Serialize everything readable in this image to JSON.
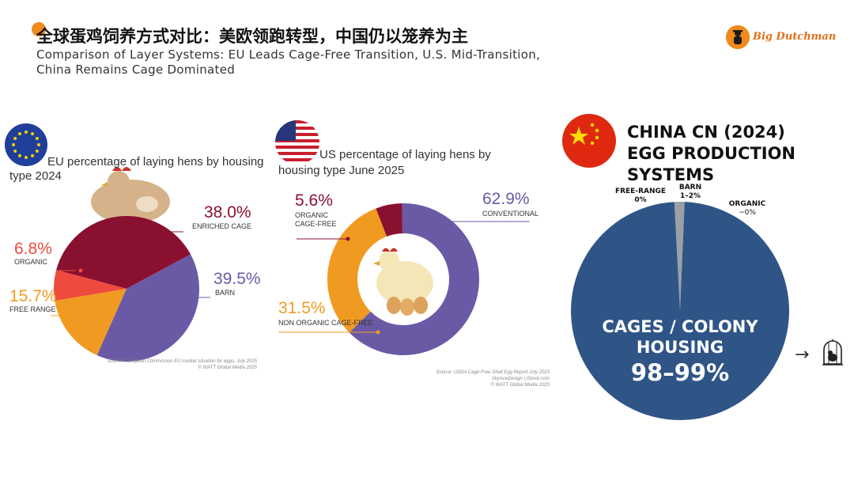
{
  "header": {
    "title_cn": "全球蛋鸡饲养方式对比：美欧领跑转型，中国仍以笼养为主",
    "subtitle_line1": "Comparison of Layer Systems: EU Leads Cage-Free Transition, U.S. Mid-Transition,",
    "subtitle_line2": "China Remains Cage Dominated"
  },
  "logo": {
    "text": "Big Dutchman",
    "icon": "farmer-logo-icon"
  },
  "colors": {
    "accent_orange": "#f08a1c",
    "eu_enriched_cage": "#8a1030",
    "eu_organic": "#ee4b3e",
    "eu_free_range": "#f19a22",
    "eu_barn": "#6a5aa6",
    "us_conventional": "#6a5aa6",
    "us_non_organic_cage_free": "#f19a22",
    "us_organic_cage_free": "#8a1030",
    "cn_cages": "#2f5587",
    "cn_other": "#9aa0a6"
  },
  "chart_data": [
    {
      "type": "pie",
      "title_line1": "EU percentage of laying hens by housing",
      "title_line2": "type 2024",
      "slices": [
        {
          "pct_label": "38.0%",
          "name": "ENRICHED CAGE",
          "value": 38.0,
          "color": "#8a1030"
        },
        {
          "pct_label": "39.5%",
          "name": "BARN",
          "value": 39.5,
          "color": "#6a5aa6"
        },
        {
          "pct_label": "15.7%",
          "name": "FREE RANGE",
          "value": 15.7,
          "color": "#f19a22"
        },
        {
          "pct_label": "6.8%",
          "name": "ORGANIC",
          "value": 6.8,
          "color": "#ee4b3e"
        }
      ],
      "source_line1": "Source: European Commission EU market situation for eggs, July 2025",
      "source_line2": "© WATT Global Media 2025"
    },
    {
      "type": "pie",
      "title_line1": "US percentage of laying hens by",
      "title_line2": "housing type June 2025",
      "slices": [
        {
          "pct_label": "62.9%",
          "name": "CONVENTIONAL",
          "value": 62.9,
          "color": "#6a5aa6"
        },
        {
          "pct_label": "31.5%",
          "name": "NON ORGANIC CAGE-FREE",
          "value": 31.5,
          "color": "#f19a22"
        },
        {
          "pct_label": "5.6%",
          "name_line1": "ORGANIC",
          "name_line2": "CAGE-FREE",
          "value": 5.6,
          "color": "#8a1030"
        }
      ],
      "source_line1": "Source: USDA Cage-Free Shell Egg Report July 2023",
      "source_line2": "SkyAceDesign | iStock.com",
      "source_line3": "© WATT Global Media 2025"
    },
    {
      "type": "pie",
      "title_line1": "CHINA CN (2024)",
      "title_line2": "EGG PRODUCTION SYSTEMS",
      "slices": [
        {
          "name_line1": "CAGES / COLONY",
          "name_line2": "HOUSING",
          "pct_label": "98–99%",
          "value": 98.5,
          "color": "#2f5587"
        },
        {
          "name": "BARN",
          "pct_label": "1–2%",
          "value": 1.5,
          "color": "#9aa0a6"
        },
        {
          "name": "FREE-RANGE",
          "pct_label": "0%",
          "value": 0,
          "color": "#9aa0a6"
        },
        {
          "name": "ORGANIC",
          "pct_label": "~0%",
          "value": 0,
          "color": "#9aa0a6"
        }
      ]
    }
  ]
}
